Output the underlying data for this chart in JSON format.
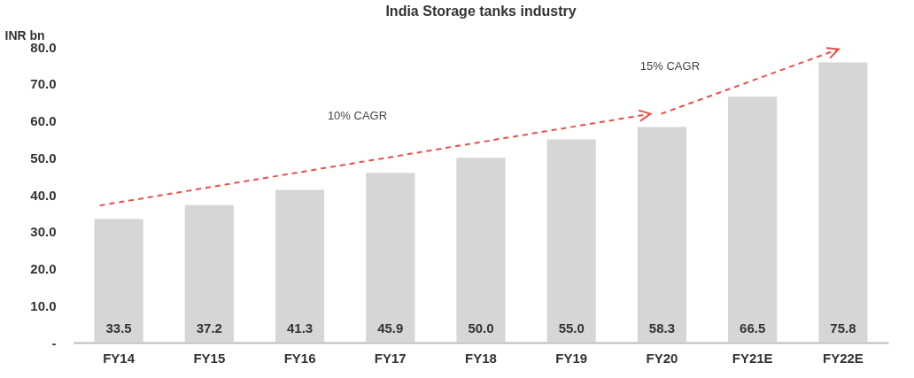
{
  "chart_data": {
    "type": "bar",
    "title": "India Storage tanks industry",
    "ylabel": "INR bn",
    "categories": [
      "FY14",
      "FY15",
      "FY16",
      "FY17",
      "FY18",
      "FY19",
      "FY20",
      "FY21E",
      "FY22E"
    ],
    "values": [
      33.5,
      37.2,
      41.3,
      45.9,
      50.0,
      55.0,
      58.3,
      66.5,
      75.8
    ],
    "value_labels": [
      "33.5",
      "37.2",
      "41.3",
      "45.9",
      "50.0",
      "55.0",
      "58.3",
      "66.5",
      "75.8"
    ],
    "color": "#d6d6d6",
    "ylim": [
      0,
      80
    ],
    "yticks": [
      {
        "value": 0,
        "label": "-"
      },
      {
        "value": 10,
        "label": "10.0"
      },
      {
        "value": 20,
        "label": "20.0"
      },
      {
        "value": 30,
        "label": "30.0"
      },
      {
        "value": 40,
        "label": "40.0"
      },
      {
        "value": 50,
        "label": "50.0"
      },
      {
        "value": 60,
        "label": "60.0"
      },
      {
        "value": 70,
        "label": "70.0"
      },
      {
        "value": 80,
        "label": "80.0"
      }
    ],
    "grid": false,
    "annotations": [
      "10% CAGR",
      "15% CAGR"
    ]
  }
}
